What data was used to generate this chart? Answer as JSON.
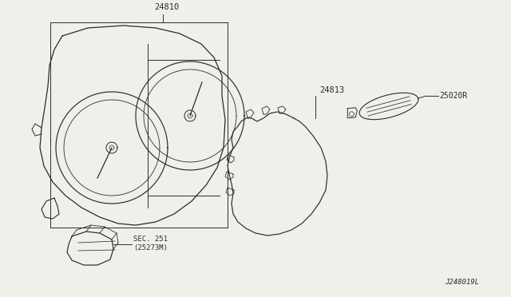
{
  "bg_color": "#f0f0eb",
  "line_color": "#2a2a2a",
  "text_color": "#2a2a2a",
  "label_24810": "24810",
  "label_24813": "24813",
  "label_25020R": "25020R",
  "label_sec251": "SEC. 251\n(25273M)",
  "label_j248019l": "J248019L",
  "figsize": [
    6.4,
    3.72
  ],
  "dpi": 100
}
